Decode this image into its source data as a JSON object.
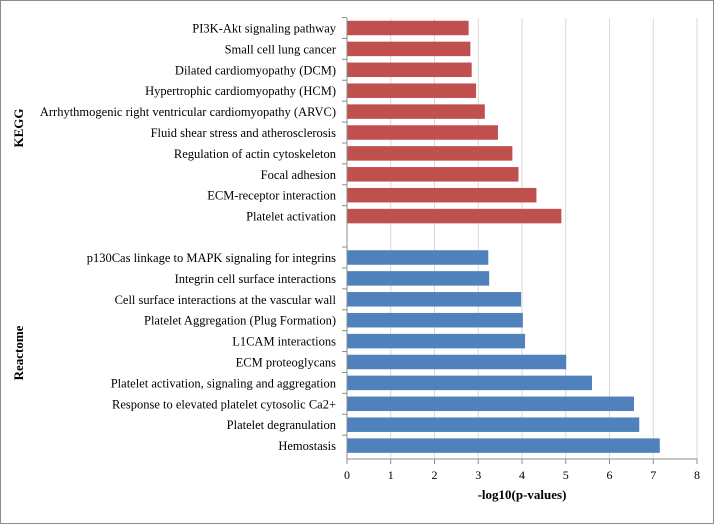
{
  "chart_data": {
    "type": "bar",
    "orientation": "horizontal",
    "xlabel": "-log10(p-values)",
    "xlim": [
      0,
      8
    ],
    "xticks": [
      0,
      1,
      2,
      3,
      4,
      5,
      6,
      7,
      8
    ],
    "grid": "vertical",
    "groups": [
      {
        "name": "KEGG",
        "color": "#c0504d",
        "categories": [
          "PI3K-Akt signaling pathway",
          "Small cell lung cancer",
          "Dilated cardiomyopathy (DCM)",
          "Hypertrophic cardiomyopathy (HCM)",
          "Arrhythmogenic right ventricular cardiomyopathy (ARVC)",
          "Fluid shear stress and atherosclerosis",
          "Regulation of actin cytoskeleton",
          "Focal adhesion",
          "ECM-receptor interaction",
          "Platelet activation"
        ],
        "values": [
          2.78,
          2.82,
          2.85,
          2.95,
          3.15,
          3.45,
          3.78,
          3.92,
          4.33,
          4.9
        ]
      },
      {
        "name": "Reactome",
        "color": "#4f81bd",
        "categories": [
          "p130Cas linkage to MAPK signaling for integrins",
          "Integrin cell surface interactions",
          "Cell surface interactions at the vascular wall",
          "Platelet Aggregation (Plug Formation)",
          "L1CAM interactions",
          "ECM proteoglycans",
          "Platelet activation, signaling and aggregation",
          "Response to elevated platelet cytosolic Ca2+",
          "Platelet degranulation",
          "Hemostasis"
        ],
        "values": [
          3.23,
          3.25,
          3.98,
          4.02,
          4.07,
          5.01,
          5.6,
          6.56,
          6.68,
          7.15
        ]
      }
    ]
  }
}
